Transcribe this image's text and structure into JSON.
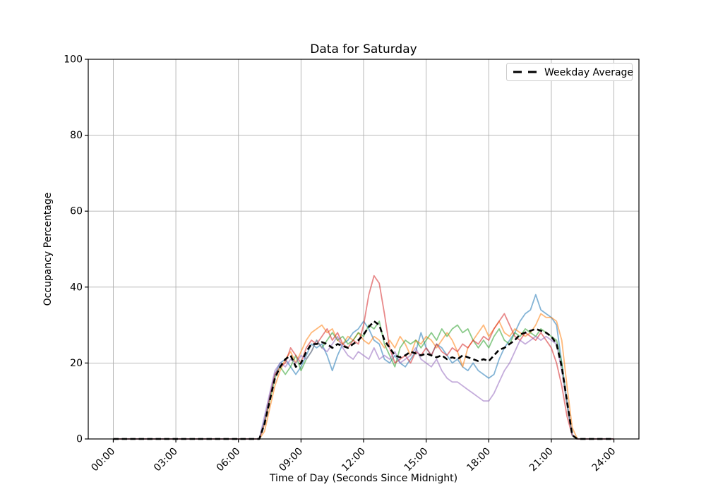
{
  "chart_data": {
    "type": "line",
    "title": "Data for Saturday",
    "xlabel": "Time of Day (Seconds Since Midnight)",
    "ylabel": "Occupancy Percentage",
    "ylim": [
      0,
      100
    ],
    "xlim_hours": [
      -1.2,
      25.2
    ],
    "grid": true,
    "x_tick_hours": [
      0,
      3,
      6,
      9,
      12,
      15,
      18,
      21,
      24
    ],
    "x_tick_labels": [
      "00:00",
      "03:00",
      "06:00",
      "09:00",
      "12:00",
      "15:00",
      "18:00",
      "21:00",
      "24:00"
    ],
    "y_ticks": [
      0,
      20,
      40,
      60,
      80,
      100
    ],
    "y_tick_labels": [
      "0",
      "20",
      "40",
      "60",
      "80",
      "100"
    ],
    "x": {
      "start_hour": 0,
      "end_hour": 24,
      "step_minutes": 15
    },
    "legend": {
      "position": "upper right",
      "entries": [
        "Weekday Average"
      ]
    },
    "series": [
      {
        "name": "line-1",
        "color": "#1f77b4",
        "opacity": 0.55,
        "style": "solid",
        "width": 1.8,
        "values": [
          0,
          0,
          0,
          0,
          0,
          0,
          0,
          0,
          0,
          0,
          0,
          0,
          0,
          0,
          0,
          0,
          0,
          0,
          0,
          0,
          0,
          0,
          0,
          0,
          0,
          0,
          0,
          0,
          0,
          5,
          11,
          17,
          20,
          21,
          19,
          17,
          19,
          22,
          25,
          24,
          25,
          22,
          18,
          22,
          25,
          26,
          28,
          29,
          31,
          29,
          26,
          25,
          21,
          20,
          22,
          20,
          19,
          21,
          23,
          28,
          24,
          22,
          25,
          24,
          22,
          20,
          21,
          19,
          18,
          20,
          18,
          17,
          16,
          17,
          21,
          24,
          26,
          28,
          31,
          33,
          34,
          38,
          34,
          33,
          32,
          30,
          20,
          10,
          1,
          0,
          0,
          0,
          0,
          0,
          0,
          0,
          0
        ]
      },
      {
        "name": "line-2",
        "color": "#ff7f0e",
        "opacity": 0.55,
        "style": "solid",
        "width": 1.8,
        "values": [
          0,
          0,
          0,
          0,
          0,
          0,
          0,
          0,
          0,
          0,
          0,
          0,
          0,
          0,
          0,
          0,
          0,
          0,
          0,
          0,
          0,
          0,
          0,
          0,
          0,
          0,
          0,
          0,
          0,
          2,
          8,
          14,
          18,
          21,
          23,
          20,
          23,
          26,
          28,
          29,
          30,
          28,
          29,
          26,
          25,
          27,
          26,
          28,
          26,
          25,
          27,
          26,
          24,
          26,
          24,
          27,
          25,
          22,
          26,
          25,
          27,
          26,
          24,
          26,
          28,
          26,
          23,
          19,
          24,
          26,
          28,
          30,
          27,
          29,
          31,
          28,
          27,
          29,
          28,
          27,
          28,
          30,
          33,
          32,
          32,
          31,
          26,
          14,
          3,
          0,
          0,
          0,
          0,
          0,
          0,
          0,
          0
        ]
      },
      {
        "name": "line-3",
        "color": "#2ca02c",
        "opacity": 0.55,
        "style": "solid",
        "width": 1.8,
        "values": [
          0,
          0,
          0,
          0,
          0,
          0,
          0,
          0,
          0,
          0,
          0,
          0,
          0,
          0,
          0,
          0,
          0,
          0,
          0,
          0,
          0,
          0,
          0,
          0,
          0,
          0,
          0,
          0,
          0,
          4,
          10,
          16,
          19,
          17,
          19,
          22,
          18,
          21,
          23,
          26,
          24,
          26,
          28,
          26,
          27,
          25,
          26,
          28,
          27,
          30,
          29,
          31,
          25,
          22,
          19,
          24,
          26,
          25,
          26,
          24,
          26,
          28,
          26,
          29,
          27,
          29,
          30,
          28,
          29,
          26,
          24,
          26,
          24,
          27,
          29,
          26,
          25,
          28,
          27,
          29,
          28,
          27,
          29,
          28,
          27,
          26,
          20,
          9,
          1,
          0,
          0,
          0,
          0,
          0,
          0,
          0,
          0
        ]
      },
      {
        "name": "line-4",
        "color": "#d62728",
        "opacity": 0.55,
        "style": "solid",
        "width": 1.8,
        "values": [
          0,
          0,
          0,
          0,
          0,
          0,
          0,
          0,
          0,
          0,
          0,
          0,
          0,
          0,
          0,
          0,
          0,
          0,
          0,
          0,
          0,
          0,
          0,
          0,
          0,
          0,
          0,
          0,
          0,
          4,
          11,
          17,
          19,
          20,
          24,
          22,
          20,
          24,
          26,
          25,
          27,
          29,
          26,
          28,
          25,
          24,
          26,
          25,
          30,
          38,
          43,
          41,
          33,
          24,
          20,
          21,
          22,
          20,
          23,
          22,
          24,
          22,
          25,
          23,
          22,
          24,
          23,
          25,
          24,
          26,
          25,
          27,
          26,
          29,
          31,
          33,
          30,
          27,
          26,
          28,
          27,
          26,
          28,
          26,
          24,
          20,
          14,
          6,
          1,
          0,
          0,
          0,
          0,
          0,
          0,
          0,
          0
        ]
      },
      {
        "name": "line-5",
        "color": "#9467bd",
        "opacity": 0.55,
        "style": "solid",
        "width": 1.8,
        "values": [
          0,
          0,
          0,
          0,
          0,
          0,
          0,
          0,
          0,
          0,
          0,
          0,
          0,
          0,
          0,
          0,
          0,
          0,
          0,
          0,
          0,
          0,
          0,
          0,
          0,
          0,
          0,
          0,
          0,
          6,
          12,
          18,
          20,
          19,
          21,
          20,
          22,
          21,
          23,
          26,
          24,
          23,
          25,
          27,
          24,
          22,
          21,
          23,
          22,
          21,
          24,
          21,
          22,
          21,
          23,
          20,
          21,
          22,
          24,
          21,
          20,
          19,
          21,
          18,
          16,
          15,
          15,
          14,
          13,
          12,
          11,
          10,
          10,
          12,
          15,
          18,
          20,
          23,
          26,
          25,
          26,
          27,
          26,
          27,
          26,
          25,
          18,
          9,
          1,
          0,
          0,
          0,
          0,
          0,
          0,
          0,
          0
        ]
      },
      {
        "name": "Weekday Average",
        "color": "#000000",
        "opacity": 1,
        "style": "dashed",
        "width": 2.6,
        "values": [
          0,
          0,
          0,
          0,
          0,
          0,
          0,
          0,
          0,
          0,
          0,
          0,
          0,
          0,
          0,
          0,
          0,
          0,
          0,
          0,
          0,
          0,
          0,
          0,
          0,
          0,
          0,
          0,
          0,
          4,
          10,
          16,
          19,
          21,
          22,
          19,
          20,
          23,
          25,
          25,
          25.5,
          25,
          24,
          25,
          24.5,
          24,
          25,
          26,
          27.5,
          29.5,
          31,
          30,
          26,
          24,
          22,
          21.5,
          22,
          23,
          22.5,
          22,
          22.5,
          22,
          21.5,
          22,
          21,
          21.5,
          21,
          22,
          21.5,
          21,
          20.5,
          21,
          20.5,
          22,
          23.5,
          24,
          25,
          26,
          27.5,
          28,
          28.5,
          29,
          28.5,
          28,
          27,
          25,
          19,
          10,
          1,
          0,
          0,
          0,
          0,
          0,
          0,
          0,
          0
        ]
      }
    ],
    "colors": {
      "grid": "#b0b0b0",
      "spine": "#000000",
      "background": "#ffffff"
    }
  }
}
